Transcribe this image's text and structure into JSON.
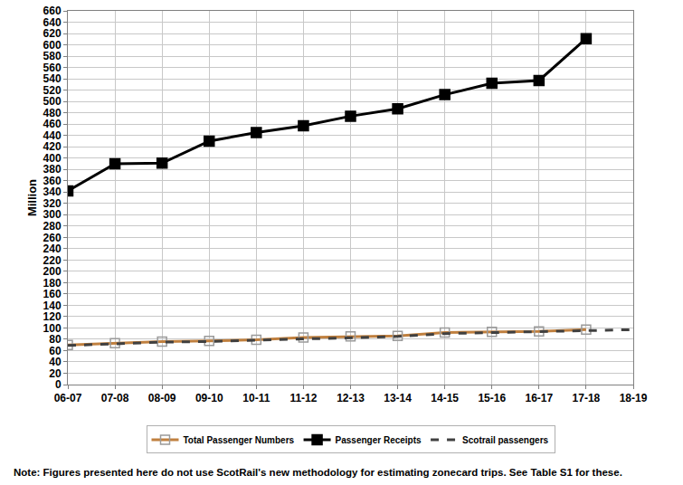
{
  "chart_data": {
    "type": "line",
    "y_label": "Million",
    "categories": [
      "06-07",
      "07-08",
      "08-09",
      "09-10",
      "10-11",
      "11-12",
      "12-13",
      "13-14",
      "14-15",
      "15-16",
      "16-17",
      "17-18",
      "18-19"
    ],
    "series": [
      {
        "name": "Total Passenger Numbers",
        "color": "#c0803f",
        "marker": "open_square",
        "line_style": "solid",
        "values": [
          70,
          73,
          76,
          77,
          79,
          83,
          85,
          86,
          92,
          93,
          94,
          97,
          null
        ]
      },
      {
        "name": "Passenger Receipts",
        "color": "#000000",
        "marker": "square",
        "line_style": "solid",
        "values": [
          342,
          390,
          391,
          430,
          445,
          457,
          474,
          487,
          512,
          532,
          537,
          611,
          null
        ]
      },
      {
        "name": "Scotrail passengers",
        "color": "#404040",
        "marker": "none",
        "line_style": "dashed",
        "values": [
          69,
          72,
          75,
          76,
          78,
          81,
          83,
          85,
          90,
          92,
          93,
          96,
          97
        ]
      }
    ],
    "ylim": [
      0,
      660
    ],
    "yticks": [
      0,
      20,
      40,
      60,
      80,
      100,
      120,
      140,
      160,
      180,
      200,
      220,
      240,
      260,
      280,
      300,
      320,
      340,
      360,
      380,
      400,
      420,
      440,
      460,
      480,
      500,
      520,
      540,
      560,
      580,
      600,
      620,
      640,
      660
    ],
    "grid": true,
    "legend": "bottom",
    "annotations": [
      "Note: Figures presented here do not use ScotRail's new methodology for estimating zonecard trips. See Table S1 for these."
    ]
  }
}
